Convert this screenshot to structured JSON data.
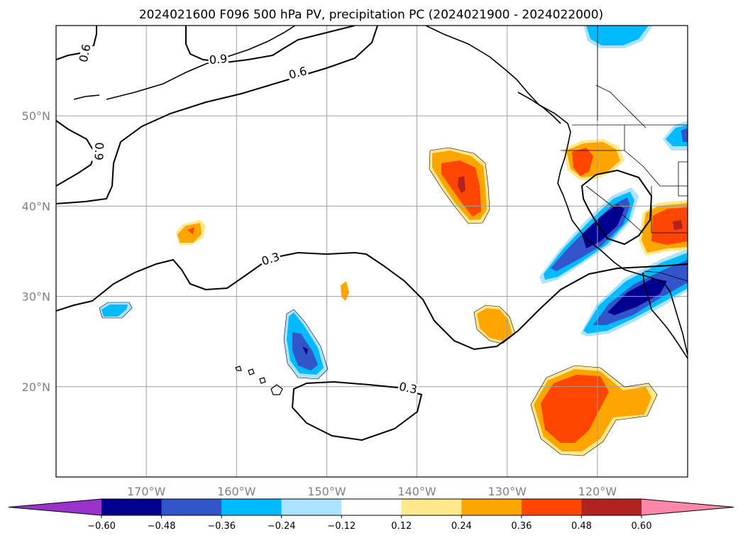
{
  "title": "2024021600 F096 500 hPa PV, precipitation PC (2024021900 - 2024022000)",
  "map": {
    "lon_range": [
      -180,
      -110
    ],
    "lat_range": [
      10,
      60
    ],
    "lon_ticks": [
      {
        "lon": -170,
        "label": "170°W"
      },
      {
        "lon": -160,
        "label": "160°W"
      },
      {
        "lon": -150,
        "label": "150°W"
      },
      {
        "lon": -140,
        "label": "140°W"
      },
      {
        "lon": -130,
        "label": "130°W"
      },
      {
        "lon": -120,
        "label": "120°W"
      }
    ],
    "lat_ticks": [
      {
        "lat": 50,
        "label": "50°N"
      },
      {
        "lat": 40,
        "label": "40°N"
      },
      {
        "lat": 30,
        "label": "30°N"
      },
      {
        "lat": 20,
        "label": "20°N"
      }
    ],
    "gridlines": true,
    "contour_labels": [
      "0.6",
      "0.9",
      "0.6",
      "0.9",
      "0.3",
      "0.3"
    ]
  },
  "colorbar": {
    "colors": [
      "#9933cc",
      "#000090",
      "#3355cc",
      "#00bbff",
      "#aee3ff",
      "#ffffff",
      "#ffe88a",
      "#ffa500",
      "#ff4500",
      "#b22222",
      "#ff88aa"
    ],
    "tick_labels": [
      "−0.60",
      "−0.48",
      "−0.36",
      "−0.24",
      "−0.12",
      "0.12",
      "0.24",
      "0.36",
      "0.48",
      "0.60"
    ],
    "extend": "both"
  }
}
